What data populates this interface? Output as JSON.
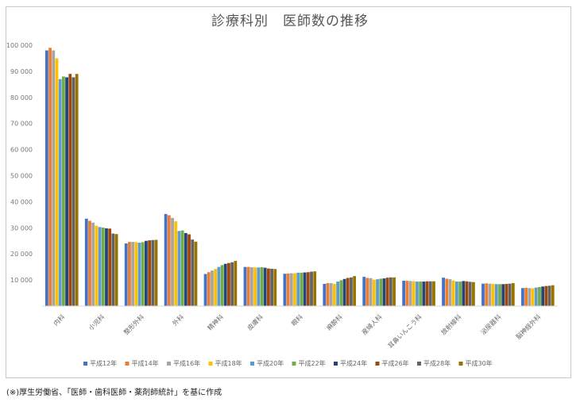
{
  "title": "診療科別　医師数の推移",
  "note": "(※)厚生労働省、「医師・歯科医師・薬剤師統計」を基に作成",
  "chart_data": {
    "type": "bar",
    "title": "診療科別　医師数の推移",
    "xlabel": "",
    "ylabel": "",
    "ylim": [
      0,
      100000
    ],
    "yticks": [
      10000,
      20000,
      30000,
      40000,
      50000,
      60000,
      70000,
      80000,
      90000,
      100000
    ],
    "ytick_labels": [
      "10 000",
      "20 000",
      "30 000",
      "40 000",
      "50 000",
      "60 000",
      "70 000",
      "80 000",
      "90 000",
      "100 000"
    ],
    "grid": false,
    "legend_position": "bottom",
    "categories": [
      "内科",
      "小児科",
      "整形外科",
      "外科",
      "精神科",
      "皮膚科",
      "眼科",
      "麻酔科",
      "産婦人科",
      "耳鼻いんこう科",
      "放射線科",
      "泌尿器科",
      "脳神経外科"
    ],
    "series": [
      {
        "name": "平成12年",
        "color": "#4472c4",
        "values": [
          98000,
          33500,
          24000,
          35300,
          12300,
          15000,
          12400,
          8500,
          11200,
          9700,
          10900,
          8600,
          6900
        ]
      },
      {
        "name": "平成14年",
        "color": "#ed7d31",
        "values": [
          99000,
          32700,
          24600,
          34800,
          13000,
          15000,
          12500,
          8800,
          10800,
          9700,
          10500,
          8700,
          7000
        ]
      },
      {
        "name": "平成16年",
        "color": "#a5a5a5",
        "values": [
          98000,
          32000,
          24600,
          33800,
          13600,
          14900,
          12600,
          8800,
          10700,
          9600,
          10300,
          8600,
          6900
        ]
      },
      {
        "name": "平成18年",
        "color": "#ffc000",
        "values": [
          95000,
          30800,
          24500,
          32500,
          14200,
          14800,
          12600,
          8500,
          10100,
          9500,
          9800,
          8500,
          6800
        ]
      },
      {
        "name": "平成20年",
        "color": "#5b9bd5",
        "values": [
          87000,
          30300,
          24300,
          28800,
          15000,
          14800,
          12800,
          9400,
          10300,
          9400,
          9400,
          8400,
          7100
        ]
      },
      {
        "name": "平成22年",
        "color": "#70ad47",
        "values": [
          88000,
          30100,
          24500,
          29000,
          15700,
          14900,
          12800,
          9900,
          10500,
          9400,
          9400,
          8400,
          7300
        ]
      },
      {
        "name": "平成24年",
        "color": "#264478",
        "values": [
          87700,
          29800,
          25000,
          28000,
          16200,
          14700,
          12900,
          10400,
          10600,
          9400,
          9600,
          8400,
          7500
        ]
      },
      {
        "name": "平成26年",
        "color": "#9e480e",
        "values": [
          89000,
          29700,
          25200,
          27500,
          16500,
          14400,
          13000,
          10800,
          10900,
          9500,
          9500,
          8500,
          7700
        ]
      },
      {
        "name": "平成28年",
        "color": "#636363",
        "values": [
          87700,
          27800,
          25300,
          25500,
          16800,
          14300,
          13200,
          11000,
          11000,
          9500,
          9300,
          8600,
          7800
        ]
      },
      {
        "name": "平成30年",
        "color": "#997300",
        "values": [
          89000,
          27600,
          25400,
          24700,
          17300,
          14200,
          13300,
          11500,
          11000,
          9500,
          9200,
          8800,
          8000
        ]
      }
    ]
  }
}
